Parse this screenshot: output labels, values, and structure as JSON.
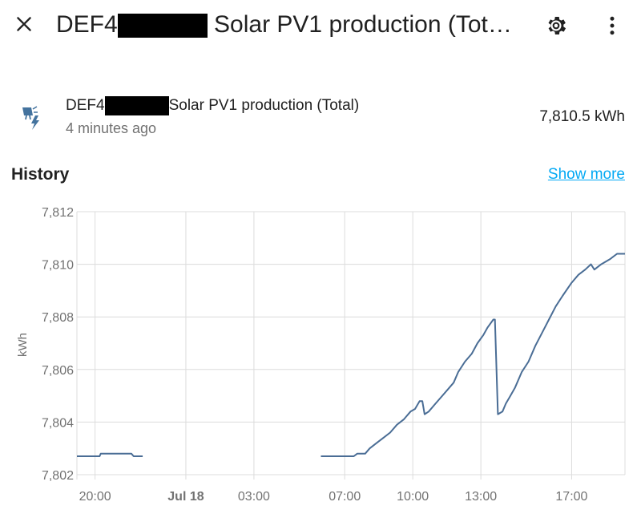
{
  "header": {
    "title_prefix": "DEF4",
    "title_suffix": "Solar PV1 production (Tot…",
    "close_icon": "close-icon",
    "settings_icon": "gear-icon",
    "more_icon": "more-vert-icon"
  },
  "entity": {
    "icon": "solar-power-icon",
    "name_prefix": "DEF4",
    "name_suffix": "Solar PV1 production (Total)",
    "last_changed": "4 minutes ago",
    "state": "7,810.5 kWh"
  },
  "history": {
    "title": "History",
    "show_more": "Show more"
  },
  "colors": {
    "line": "#4a6d95",
    "grid": "#dcdcdc",
    "link": "#03a9f4",
    "redaction": "#000000"
  },
  "chart_data": {
    "type": "line",
    "ylabel": "kWh",
    "ylim": [
      7802,
      7812
    ],
    "y_ticks": [
      "7,812",
      "7,810",
      "7,808",
      "7,806",
      "7,804",
      "7,802"
    ],
    "x_ticks": [
      {
        "label": "20:00",
        "hour": 20,
        "bold": false
      },
      {
        "label": "Jul 18",
        "hour": 24,
        "bold": true
      },
      {
        "label": "03:00",
        "hour": 27,
        "bold": false
      },
      {
        "label": "07:00",
        "hour": 31,
        "bold": false
      },
      {
        "label": "10:00",
        "hour": 34,
        "bold": false
      },
      {
        "label": "13:00",
        "hour": 37,
        "bold": false
      },
      {
        "label": "17:00",
        "hour": 41,
        "bold": false
      }
    ],
    "xlim_hours": [
      19.2,
      43.35
    ],
    "grid": true,
    "series": [
      {
        "segments": [
          [
            [
              19.2,
              7802.7
            ],
            [
              19.35,
              7802.7
            ],
            [
              19.65,
              7802.7
            ],
            [
              20.2,
              7802.7
            ],
            [
              20.25,
              7802.8
            ],
            [
              21.6,
              7802.8
            ],
            [
              21.7,
              7802.7
            ],
            [
              22.1,
              7802.7
            ]
          ],
          [
            [
              29.95,
              7802.7
            ],
            [
              31.0,
              7802.7
            ],
            [
              31.4,
              7802.7
            ],
            [
              31.55,
              7802.8
            ],
            [
              31.9,
              7802.8
            ],
            [
              32.1,
              7803.0
            ],
            [
              32.4,
              7803.2
            ],
            [
              32.7,
              7803.4
            ],
            [
              33.0,
              7803.6
            ],
            [
              33.3,
              7803.9
            ],
            [
              33.6,
              7804.1
            ],
            [
              33.9,
              7804.4
            ],
            [
              34.1,
              7804.5
            ],
            [
              34.3,
              7804.8
            ],
            [
              34.42,
              7804.8
            ],
            [
              34.52,
              7804.3
            ],
            [
              34.7,
              7804.4
            ],
            [
              35.0,
              7804.7
            ],
            [
              35.3,
              7805.0
            ],
            [
              35.6,
              7805.3
            ],
            [
              35.8,
              7805.5
            ],
            [
              36.0,
              7805.9
            ],
            [
              36.3,
              7806.3
            ],
            [
              36.6,
              7806.6
            ],
            [
              36.85,
              7807.0
            ],
            [
              37.1,
              7807.3
            ],
            [
              37.3,
              7807.6
            ],
            [
              37.55,
              7807.9
            ],
            [
              37.62,
              7807.9
            ],
            [
              37.75,
              7804.3
            ],
            [
              37.95,
              7804.4
            ],
            [
              38.1,
              7804.7
            ],
            [
              38.3,
              7805.0
            ],
            [
              38.5,
              7805.3
            ],
            [
              38.8,
              7805.9
            ],
            [
              39.1,
              7806.3
            ],
            [
              39.4,
              7806.9
            ],
            [
              39.7,
              7807.4
            ],
            [
              40.0,
              7807.9
            ],
            [
              40.3,
              7808.4
            ],
            [
              40.6,
              7808.8
            ],
            [
              41.0,
              7809.3
            ],
            [
              41.3,
              7809.6
            ],
            [
              41.6,
              7809.8
            ],
            [
              41.85,
              7810.0
            ],
            [
              42.0,
              7809.8
            ],
            [
              42.3,
              7810.0
            ],
            [
              42.7,
              7810.2
            ],
            [
              43.0,
              7810.4
            ],
            [
              43.35,
              7810.4
            ]
          ]
        ]
      }
    ]
  }
}
